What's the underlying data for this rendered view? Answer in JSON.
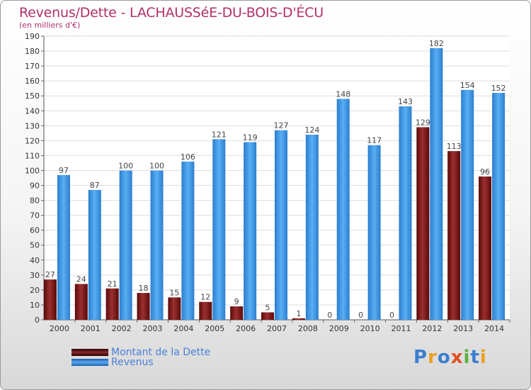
{
  "chart_data": {
    "type": "bar",
    "title": "Revenus/Dette - LACHAUSSéE-DU-BOIS-D'ÉCU",
    "subtitle": "(en milliers d'€)",
    "categories": [
      "2000",
      "2001",
      "2002",
      "2003",
      "2004",
      "2005",
      "2006",
      "2007",
      "2008",
      "2009",
      "2010",
      "2011",
      "2012",
      "2013",
      "2014"
    ],
    "series": [
      {
        "name": "Montant de la Dette",
        "color": "#7a1a1a",
        "values": [
          27,
          24,
          21,
          18,
          15,
          12,
          9,
          5,
          1,
          0,
          0,
          0,
          129,
          113,
          96
        ]
      },
      {
        "name": "Revenus",
        "color": "#3a8ede",
        "values": [
          97,
          87,
          100,
          100,
          106,
          121,
          119,
          127,
          124,
          148,
          117,
          143,
          182,
          154,
          152
        ]
      }
    ],
    "ylim": [
      0,
      190
    ],
    "ytick_step": 10,
    "grid": true,
    "legend_position": "bottom-left"
  },
  "logo": {
    "text": "Proxiti"
  }
}
